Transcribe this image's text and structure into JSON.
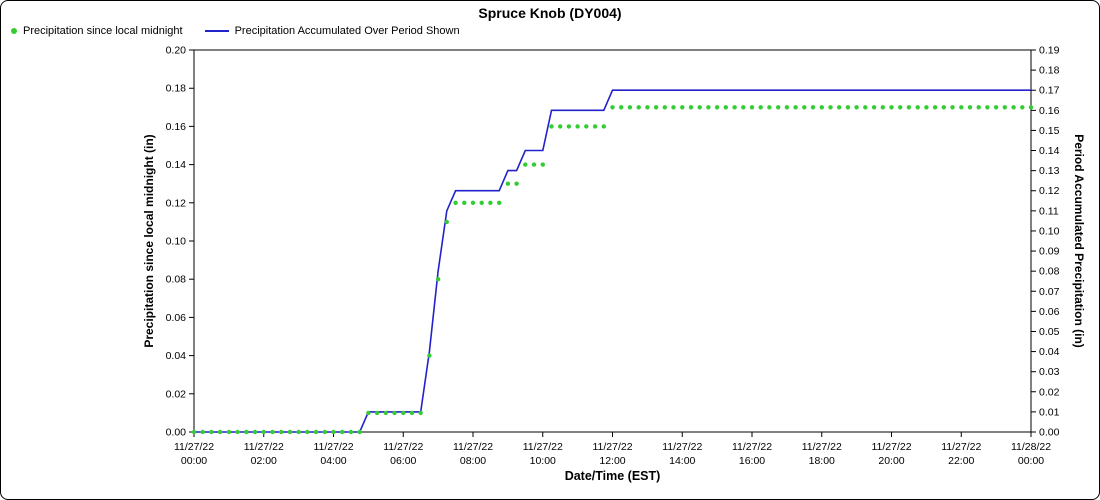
{
  "chart_data": {
    "type": "line",
    "title": "Spruce Knob (DY004)",
    "xlabel": "Date/Time (EST)",
    "ylabel_left": "Precipitation since local midnight (in)",
    "ylabel_right": "Period Accumulated Precipitation (in)",
    "legend_position": "top-left",
    "grid": false,
    "colors": {
      "green": "#33cc33",
      "blue": "#2222cc",
      "axis": "#000000"
    },
    "x_range_hours": [
      0,
      24
    ],
    "left_axis": {
      "min": 0.0,
      "max": 0.2,
      "tick_step": 0.02,
      "tick_labels": [
        "0.00",
        "0.02",
        "0.04",
        "0.06",
        "0.08",
        "0.10",
        "0.12",
        "0.14",
        "0.16",
        "0.18",
        "0.20"
      ]
    },
    "right_axis": {
      "min": 0.0,
      "max": 0.19,
      "tick_step": 0.01,
      "tick_labels": [
        "0.00",
        "0.01",
        "0.02",
        "0.03",
        "0.04",
        "0.05",
        "0.06",
        "0.07",
        "0.08",
        "0.09",
        "0.10",
        "0.11",
        "0.12",
        "0.13",
        "0.14",
        "0.15",
        "0.16",
        "0.17",
        "0.18",
        "0.19"
      ]
    },
    "x_ticks": [
      {
        "line1": "11/27/22",
        "line2": "00:00"
      },
      {
        "line1": "11/27/22",
        "line2": "02:00"
      },
      {
        "line1": "11/27/22",
        "line2": "04:00"
      },
      {
        "line1": "11/27/22",
        "line2": "06:00"
      },
      {
        "line1": "11/27/22",
        "line2": "08:00"
      },
      {
        "line1": "11/27/22",
        "line2": "10:00"
      },
      {
        "line1": "11/27/22",
        "line2": "12:00"
      },
      {
        "line1": "11/27/22",
        "line2": "14:00"
      },
      {
        "line1": "11/27/22",
        "line2": "16:00"
      },
      {
        "line1": "11/27/22",
        "line2": "18:00"
      },
      {
        "line1": "11/27/22",
        "line2": "20:00"
      },
      {
        "line1": "11/27/22",
        "line2": "22:00"
      },
      {
        "line1": "11/28/22",
        "line2": "00:00"
      }
    ],
    "x_hours": [
      0,
      0.25,
      0.5,
      0.75,
      1,
      1.25,
      1.5,
      1.75,
      2,
      2.25,
      2.5,
      2.75,
      3,
      3.25,
      3.5,
      3.75,
      4,
      4.25,
      4.5,
      4.75,
      5,
      5.25,
      5.5,
      5.75,
      6,
      6.25,
      6.5,
      6.75,
      7,
      7.25,
      7.5,
      7.75,
      8,
      8.25,
      8.5,
      8.75,
      9,
      9.25,
      9.5,
      9.75,
      10,
      10.25,
      10.5,
      10.75,
      11,
      11.25,
      11.5,
      11.75,
      12,
      12.25,
      12.5,
      12.75,
      13,
      13.25,
      13.5,
      13.75,
      14,
      14.25,
      14.5,
      14.75,
      15,
      15.25,
      15.5,
      15.75,
      16,
      16.25,
      16.5,
      16.75,
      17,
      17.25,
      17.5,
      17.75,
      18,
      18.25,
      18.5,
      18.75,
      19,
      19.25,
      19.5,
      19.75,
      20,
      20.25,
      20.5,
      20.75,
      21,
      21.25,
      21.5,
      21.75,
      22,
      22.25,
      22.5,
      22.75,
      23,
      23.25,
      23.5,
      23.75,
      24
    ],
    "series": [
      {
        "name": "Precipitation since local midnight",
        "axis": "left",
        "style": "dots",
        "color": "#33cc33",
        "values": [
          0,
          0,
          0,
          0,
          0,
          0,
          0,
          0,
          0,
          0,
          0,
          0,
          0,
          0,
          0,
          0,
          0,
          0,
          0,
          0,
          0.01,
          0.01,
          0.01,
          0.01,
          0.01,
          0.01,
          0.01,
          0.04,
          0.08,
          0.11,
          0.12,
          0.12,
          0.12,
          0.12,
          0.12,
          0.12,
          0.13,
          0.13,
          0.14,
          0.14,
          0.14,
          0.16,
          0.16,
          0.16,
          0.16,
          0.16,
          0.16,
          0.16,
          0.17,
          0.17,
          0.17,
          0.17,
          0.17,
          0.17,
          0.17,
          0.17,
          0.17,
          0.17,
          0.17,
          0.17,
          0.17,
          0.17,
          0.17,
          0.17,
          0.17,
          0.17,
          0.17,
          0.17,
          0.17,
          0.17,
          0.17,
          0.17,
          0.17,
          0.17,
          0.17,
          0.17,
          0.17,
          0.17,
          0.17,
          0.17,
          0.17,
          0.17,
          0.17,
          0.17,
          0.17,
          0.17,
          0.17,
          0.17,
          0.17,
          0.17,
          0.17,
          0.17,
          0.17,
          0.17,
          0.17,
          0.17,
          0.17
        ]
      },
      {
        "name": "Precipitation Accumulated Over Period Shown",
        "axis": "right",
        "style": "line",
        "color": "#2222cc",
        "values": [
          0,
          0,
          0,
          0,
          0,
          0,
          0,
          0,
          0,
          0,
          0,
          0,
          0,
          0,
          0,
          0,
          0,
          0,
          0,
          0,
          0.01,
          0.01,
          0.01,
          0.01,
          0.01,
          0.01,
          0.01,
          0.04,
          0.08,
          0.11,
          0.12,
          0.12,
          0.12,
          0.12,
          0.12,
          0.12,
          0.13,
          0.13,
          0.14,
          0.14,
          0.14,
          0.16,
          0.16,
          0.16,
          0.16,
          0.16,
          0.16,
          0.16,
          0.17,
          0.17,
          0.17,
          0.17,
          0.17,
          0.17,
          0.17,
          0.17,
          0.17,
          0.17,
          0.17,
          0.17,
          0.17,
          0.17,
          0.17,
          0.17,
          0.17,
          0.17,
          0.17,
          0.17,
          0.17,
          0.17,
          0.17,
          0.17,
          0.17,
          0.17,
          0.17,
          0.17,
          0.17,
          0.17,
          0.17,
          0.17,
          0.17,
          0.17,
          0.17,
          0.17,
          0.17,
          0.17,
          0.17,
          0.17,
          0.17,
          0.17,
          0.17,
          0.17,
          0.17,
          0.17,
          0.17,
          0.17,
          0.17
        ]
      }
    ]
  }
}
